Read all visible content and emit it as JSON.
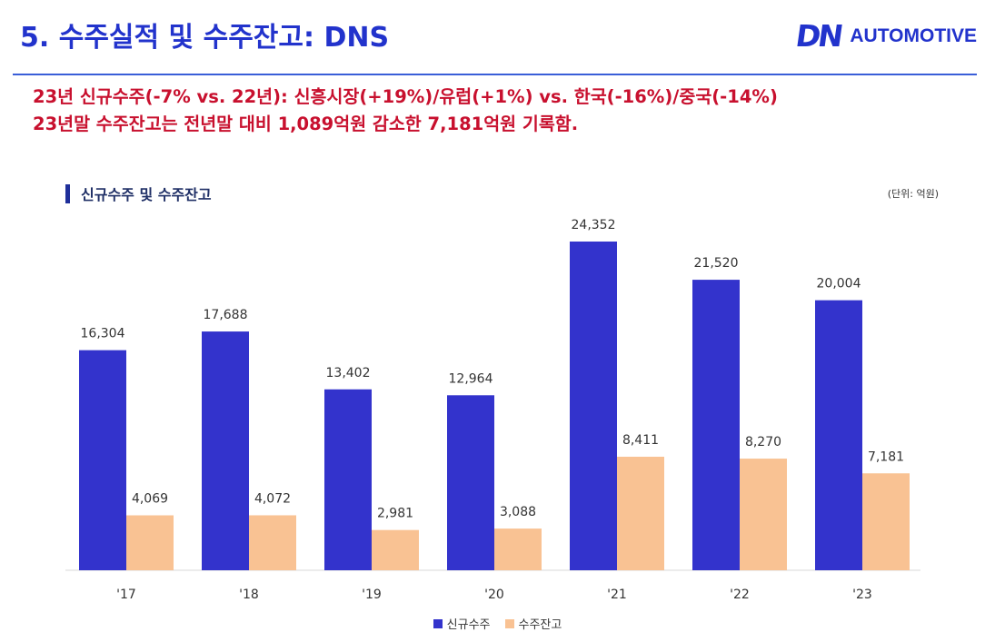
{
  "header": {
    "title": "5. 수주실적 및 수주잔고: DNS",
    "logo_mark": "DN",
    "logo_text": "AUTOMOTIVE"
  },
  "summary": {
    "line1": "23년 신규수주(-7% vs. 22년): 신흥시장(+19%)/유럽(+1%) vs. 한국(-16%)/중국(-14%)",
    "line2": "23년말 수주잔고는 전년말 대비 1,089억원 감소한 7,181억원 기록함."
  },
  "colors": {
    "accent": "#2233cc",
    "summary_text": "#c8102e",
    "new_orders": "#3333cc",
    "backlog": "#f9c293"
  },
  "chart_data": {
    "type": "bar",
    "title": "신규수주 및 수주잔고",
    "unit": "(단위: 억원)",
    "categories": [
      "'17",
      "'18",
      "'19",
      "'20",
      "'21",
      "'22",
      "'23"
    ],
    "series": [
      {
        "name": "신규수주",
        "color": "#3333cc",
        "values": [
          16304,
          17688,
          13402,
          12964,
          24352,
          21520,
          20004
        ],
        "labels": [
          "16,304",
          "17,688",
          "13,402",
          "12,964",
          "24,352",
          "21,520",
          "20,004"
        ]
      },
      {
        "name": "수주잔고",
        "color": "#f9c293",
        "values": [
          4069,
          4072,
          2981,
          3088,
          8411,
          8270,
          7181
        ],
        "labels": [
          "4,069",
          "4,072",
          "2,981",
          "3,088",
          "8,411",
          "8,270",
          "7,181"
        ]
      }
    ],
    "ylim": [
      0,
      24352
    ],
    "grid": false,
    "legend_position": "bottom"
  }
}
